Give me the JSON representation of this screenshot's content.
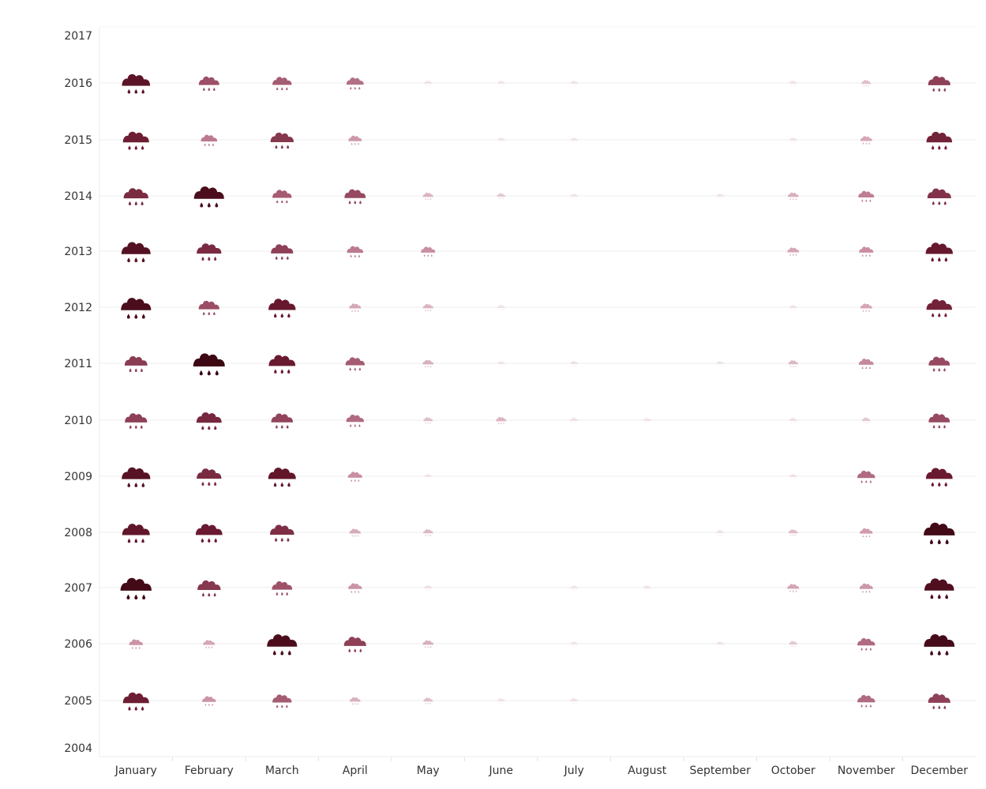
{
  "chart_data": {
    "type": "scatter",
    "title": "",
    "xlabel": "",
    "ylabel": "",
    "categories": [
      "January",
      "February",
      "March",
      "April",
      "May",
      "June",
      "July",
      "August",
      "September",
      "October",
      "November",
      "December"
    ],
    "y_ticks": [
      "2017",
      "2016",
      "2015",
      "2014",
      "2013",
      "2012",
      "2011",
      "2010",
      "2009",
      "2008",
      "2007",
      "2006",
      "2005",
      "2004"
    ],
    "ylim": [
      2004,
      2017
    ],
    "grid": "horizontal",
    "legend": "none",
    "marker": "rain-cloud-icon",
    "value_note": "relative monthly rainfall intensity, 0-1 scale, shown by icon size and color",
    "colors": {
      "darkest": "#3d0714",
      "darker": "#6a1a30",
      "mid": "#9c4f66",
      "light": "#c98ea2",
      "lightest": "#ead6dd",
      "grid": "#eeeeee",
      "axis_text": "#333333"
    },
    "series": [
      {
        "year": 2016,
        "values": [
          0.86,
          0.55,
          0.5,
          0.42,
          0.04,
          0.02,
          0.02,
          0.0,
          0.0,
          0.03,
          0.1,
          0.62
        ]
      },
      {
        "year": 2015,
        "values": [
          0.78,
          0.38,
          0.66,
          0.26,
          0.0,
          0.02,
          0.02,
          0.0,
          0.0,
          0.02,
          0.2,
          0.76
        ]
      },
      {
        "year": 2014,
        "values": [
          0.72,
          0.94,
          0.5,
          0.58,
          0.14,
          0.06,
          0.02,
          0.0,
          0.02,
          0.16,
          0.36,
          0.68
        ]
      },
      {
        "year": 2013,
        "values": [
          0.9,
          0.72,
          0.62,
          0.38,
          0.3,
          0.0,
          0.0,
          0.0,
          0.0,
          0.2,
          0.3,
          0.82
        ]
      },
      {
        "year": 2012,
        "values": [
          0.94,
          0.56,
          0.82,
          0.2,
          0.14,
          0.03,
          0.0,
          0.0,
          0.0,
          0.03,
          0.2,
          0.76
        ]
      },
      {
        "year": 2011,
        "values": [
          0.64,
          1.0,
          0.8,
          0.5,
          0.16,
          0.02,
          0.04,
          0.0,
          0.02,
          0.12,
          0.32,
          0.58
        ]
      },
      {
        "year": 2010,
        "values": [
          0.62,
          0.74,
          0.6,
          0.44,
          0.1,
          0.14,
          0.05,
          0.03,
          0.0,
          0.04,
          0.06,
          0.58
        ]
      },
      {
        "year": 2009,
        "values": [
          0.88,
          0.72,
          0.84,
          0.3,
          0.02,
          0.0,
          0.0,
          0.0,
          0.0,
          0.03,
          0.44,
          0.8
        ]
      },
      {
        "year": 2008,
        "values": [
          0.84,
          0.8,
          0.7,
          0.18,
          0.12,
          0.0,
          0.0,
          0.0,
          0.03,
          0.1,
          0.24,
          0.98
        ]
      },
      {
        "year": 2007,
        "values": [
          0.98,
          0.66,
          0.54,
          0.28,
          0.04,
          0.0,
          0.02,
          0.02,
          0.0,
          0.2,
          0.26,
          0.92
        ]
      },
      {
        "year": 2006,
        "values": [
          0.28,
          0.2,
          0.94,
          0.62,
          0.16,
          0.0,
          0.02,
          0.0,
          0.02,
          0.06,
          0.44,
          0.96
        ]
      },
      {
        "year": 2005,
        "values": [
          0.78,
          0.28,
          0.5,
          0.16,
          0.1,
          0.03,
          0.04,
          0.0,
          0.0,
          0.0,
          0.44,
          0.62
        ]
      }
    ]
  }
}
